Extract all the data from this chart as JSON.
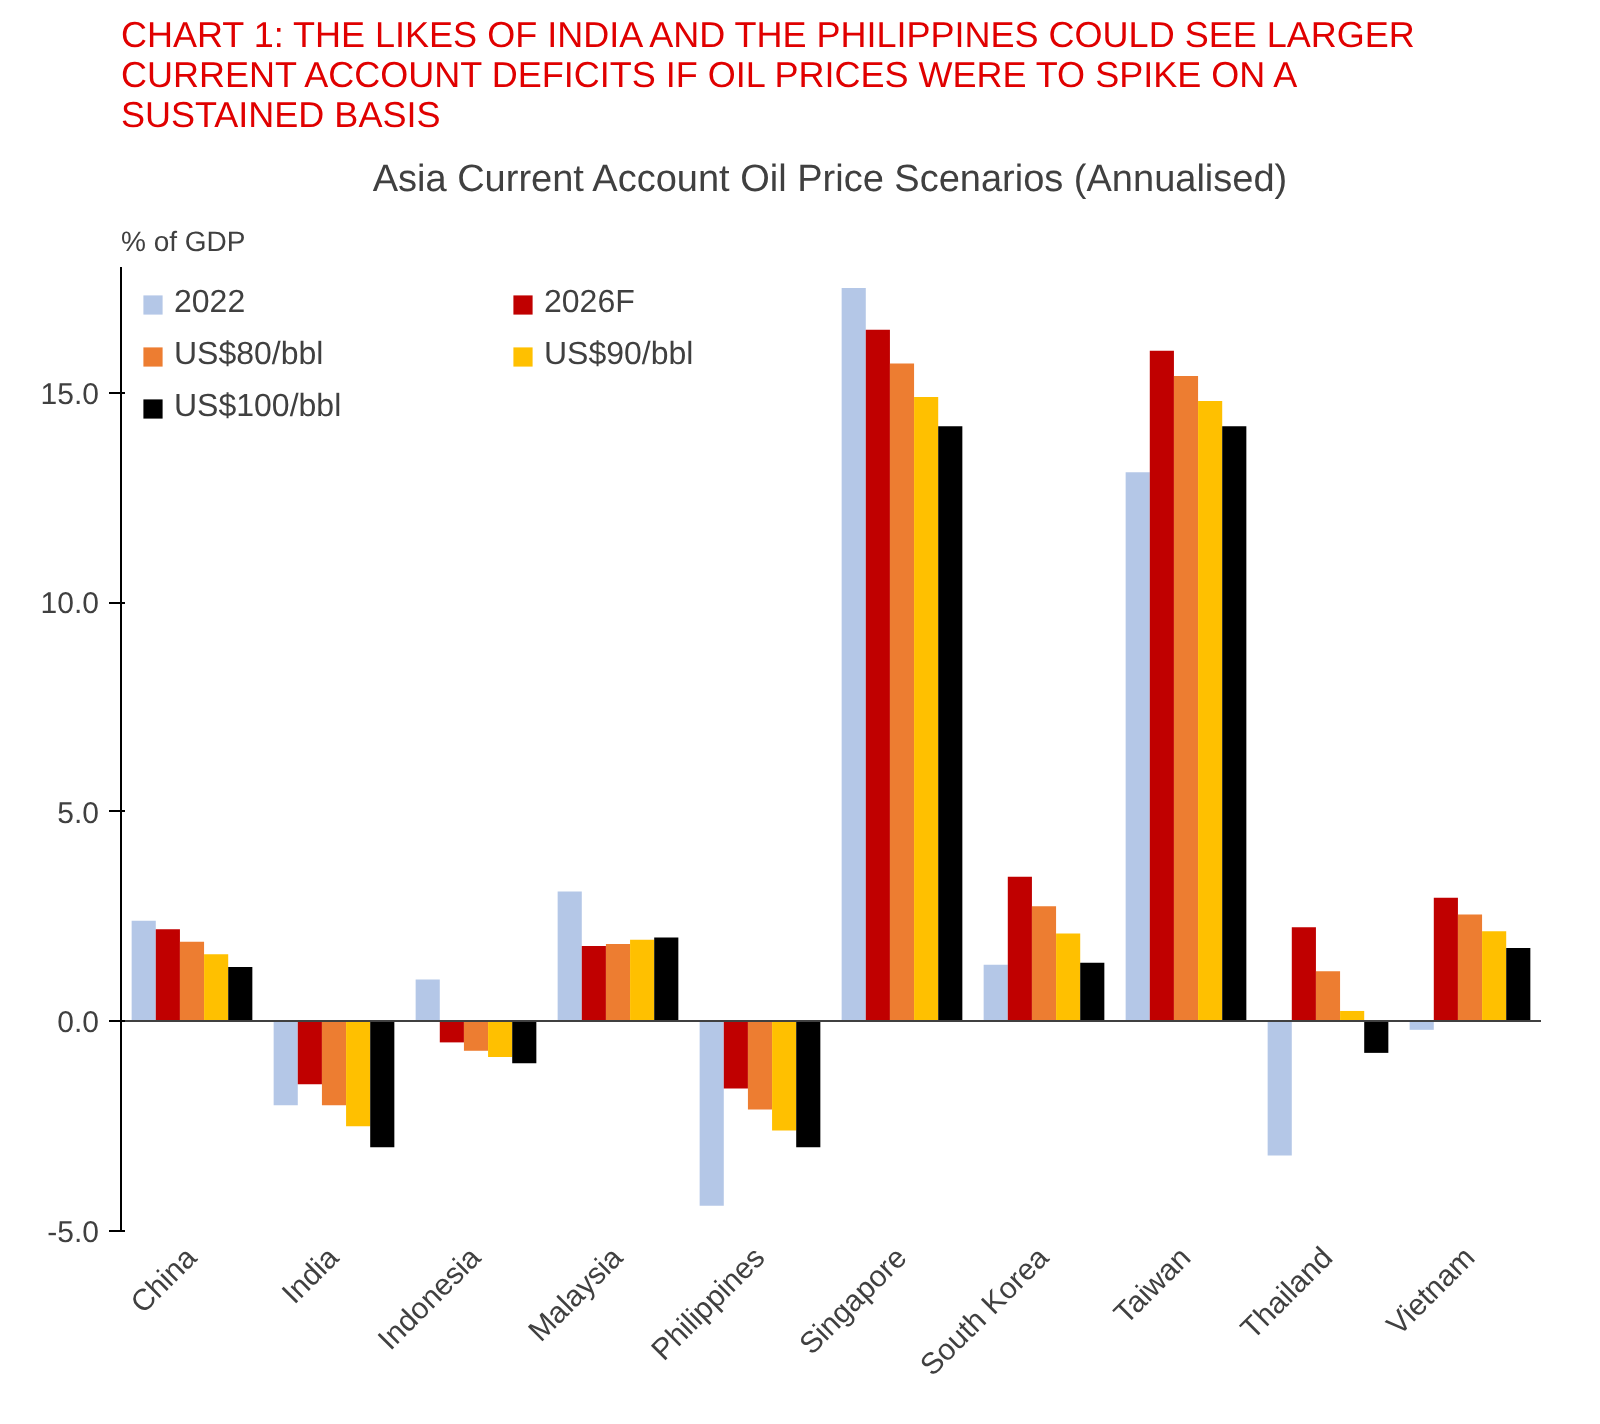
{
  "chart_data": {
    "type": "bar",
    "title": "CHART 1: THE LIKES OF INDIA AND THE PHILIPPINES COULD SEE LARGER CURRENT ACCOUNT DEFICITS IF OIL PRICES WERE TO SPIKE ON A SUSTAINED BASIS",
    "subtitle": "Asia Current Account Oil Price Scenarios (Annualised)",
    "ylabel": "% of GDP",
    "categories": [
      "China",
      "India",
      "Indonesia",
      "Malaysia",
      "Philippines",
      "Singapore",
      "South Korea",
      "Taiwan",
      "Thailand",
      "Vietnam"
    ],
    "series": [
      {
        "name": "2022",
        "color": "#b4c7e7",
        "values": [
          2.4,
          -2.0,
          1.0,
          3.1,
          -4.4,
          17.5,
          1.35,
          13.1,
          -3.2,
          -0.2
        ]
      },
      {
        "name": "2026F",
        "color": "#c00000",
        "values": [
          2.2,
          -1.5,
          -0.5,
          1.8,
          -1.6,
          16.5,
          3.45,
          16.0,
          2.25,
          2.95
        ]
      },
      {
        "name": "US$80/bbl",
        "color": "#ed7d31",
        "values": [
          1.9,
          -2.0,
          -0.7,
          1.85,
          -2.1,
          15.7,
          2.75,
          15.4,
          1.2,
          2.55
        ]
      },
      {
        "name": "US$90/bbl",
        "color": "#ffc000",
        "values": [
          1.6,
          -2.5,
          -0.85,
          1.95,
          -2.6,
          14.9,
          2.1,
          14.8,
          0.25,
          2.15
        ]
      },
      {
        "name": "US$100/bbl",
        "color": "#000000",
        "values": [
          1.3,
          -3.0,
          -1.0,
          2.0,
          -3.0,
          14.2,
          1.4,
          14.2,
          -0.75,
          1.75
        ]
      }
    ],
    "ylim": [
      -5,
      18
    ],
    "yticks": [
      {
        "value": -5,
        "label": "-5.0"
      },
      {
        "value": 0,
        "label": "0.0"
      },
      {
        "value": 5,
        "label": "5.0"
      },
      {
        "value": 10,
        "label": "10.0"
      },
      {
        "value": 15,
        "label": "15.0"
      }
    ],
    "legend": "top left"
  }
}
